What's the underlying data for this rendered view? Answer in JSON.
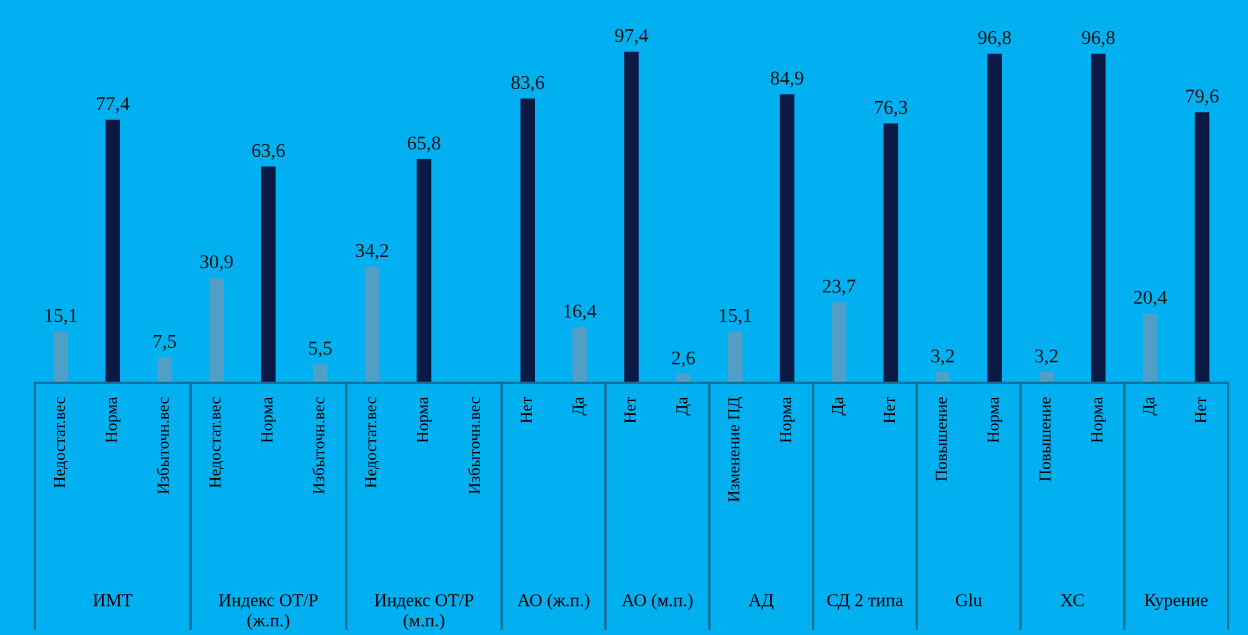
{
  "chart_data": [
    {
      "type": "bar",
      "xlabel": "ИМТ",
      "categories": [
        "Недостат.вес",
        "Норма",
        "Избыточн.вес"
      ],
      "values": [
        15.1,
        77.4,
        7.5
      ],
      "value_labels": [
        "15,1",
        "77,4",
        "7,5"
      ],
      "colors": [
        "#4f9fc6",
        "#0b1a44",
        "#4f9fc6"
      ]
    },
    {
      "type": "bar",
      "xlabel": "Индекс ОТ/Р\n(ж.п.)",
      "categories": [
        "Недостат.вес",
        "Норма",
        "Избыточн.вес"
      ],
      "values": [
        30.9,
        63.6,
        5.5
      ],
      "value_labels": [
        "30,9",
        "63,6",
        "5,5"
      ],
      "colors": [
        "#4f9fc6",
        "#0b1a44",
        "#4f9fc6"
      ]
    },
    {
      "type": "bar",
      "xlabel": "Индекс ОТ/Р\n(м.п.)",
      "categories": [
        "Недостат.вес",
        "Норма",
        "Избыточн.вес"
      ],
      "values": [
        34.2,
        65.8,
        null
      ],
      "value_labels": [
        "34,2",
        "65,8",
        null
      ],
      "colors": [
        "#4f9fc6",
        "#0b1a44",
        "#4f9fc6"
      ]
    },
    {
      "type": "bar",
      "xlabel": "АО (ж.п.)",
      "categories": [
        "Нет",
        "Да"
      ],
      "values": [
        83.6,
        16.4
      ],
      "value_labels": [
        "83,6",
        "16,4"
      ],
      "colors": [
        "#0b1a44",
        "#4f9fc6"
      ]
    },
    {
      "type": "bar",
      "xlabel": "АО (м.п.)",
      "categories": [
        "Нет",
        "Да"
      ],
      "values": [
        97.4,
        2.6
      ],
      "value_labels": [
        "97,4",
        "2,6"
      ],
      "colors": [
        "#0b1a44",
        "#4f9fc6"
      ]
    },
    {
      "type": "bar",
      "xlabel": "АД",
      "categories": [
        "Изменение ПД",
        "Норма"
      ],
      "values": [
        15.1,
        84.9
      ],
      "value_labels": [
        "15,1",
        "84,9"
      ],
      "colors": [
        "#4f9fc6",
        "#0b1a44"
      ]
    },
    {
      "type": "bar",
      "xlabel": "СД 2 типа",
      "categories": [
        "Да",
        "Нет"
      ],
      "values": [
        23.7,
        76.3
      ],
      "value_labels": [
        "23,7",
        "76,3"
      ],
      "colors": [
        "#4f9fc6",
        "#0b1a44"
      ]
    },
    {
      "type": "bar",
      "xlabel": "Glu",
      "categories": [
        "Повышение",
        "Норма"
      ],
      "values": [
        3.2,
        96.8
      ],
      "value_labels": [
        "3,2",
        "96,8"
      ],
      "colors": [
        "#4f9fc6",
        "#0b1a44"
      ]
    },
    {
      "type": "bar",
      "xlabel": "ХС",
      "categories": [
        "Повышение",
        "Норма"
      ],
      "values": [
        3.2,
        96.8
      ],
      "value_labels": [
        "3,2",
        "96,8"
      ],
      "colors": [
        "#4f9fc6",
        "#0b1a44"
      ]
    },
    {
      "type": "bar",
      "xlabel": "Курение",
      "categories": [
        "Да",
        "Нет"
      ],
      "values": [
        20.4,
        79.6
      ],
      "value_labels": [
        "20,4",
        "79,6"
      ],
      "colors": [
        "#4f9fc6",
        "#0b1a44"
      ]
    }
  ]
}
